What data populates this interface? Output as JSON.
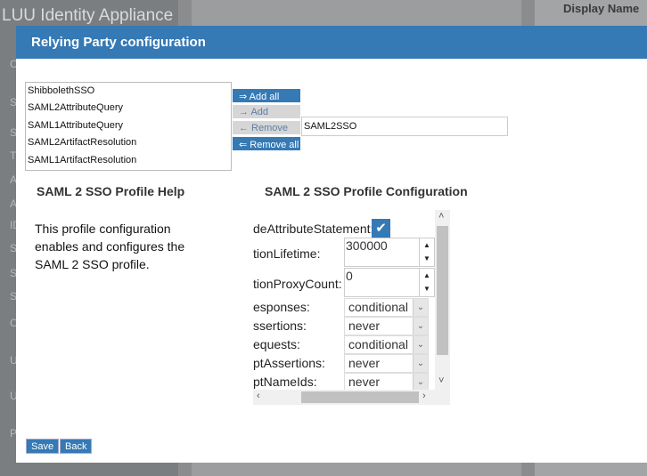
{
  "background": {
    "app_title": "LUU Identity Appliance",
    "side_letters": [
      "C",
      "S",
      "S",
      "T",
      "A",
      "A",
      "ID",
      "S",
      "S",
      "S",
      "C",
      "U",
      "U",
      "P"
    ],
    "display_label": "Display Name"
  },
  "modal": {
    "title": "Relying Party configuration",
    "available_profiles": [
      "ShibbolethSSO",
      "SAML2AttributeQuery",
      "SAML1AttributeQuery",
      "SAML2ArtifactResolution",
      "SAML1ArtifactResolution"
    ],
    "buttons": {
      "add_all": "⇒ Add all",
      "add": "→ Add",
      "remove": "← Remove",
      "remove_all": "⇐ Remove all"
    },
    "selected_profiles": [
      "SAML2SSO"
    ],
    "help_title": "SAML 2 SSO Profile Help",
    "help_text": "This profile configuration enables and configures the SAML 2 SSO profile.",
    "config_title": "SAML 2 SSO Profile Configuration",
    "config": {
      "include_attribute_statement": {
        "label": "deAttributeStatement:",
        "checked": true
      },
      "assertion_lifetime": {
        "label": "tionLifetime:",
        "value": "300000"
      },
      "assertion_proxy_count": {
        "label": "tionProxyCount:",
        "value": "0"
      },
      "selects": [
        {
          "label": "esponses:",
          "value": "conditional"
        },
        {
          "label": "ssertions:",
          "value": "never"
        },
        {
          "label": "equests:",
          "value": "conditional"
        },
        {
          "label": "ptAssertions:",
          "value": "never"
        },
        {
          "label": "ptNameIds:",
          "value": "never"
        }
      ]
    },
    "save": "Save",
    "back": "Back"
  },
  "colors": {
    "accent": "#3579b5"
  }
}
